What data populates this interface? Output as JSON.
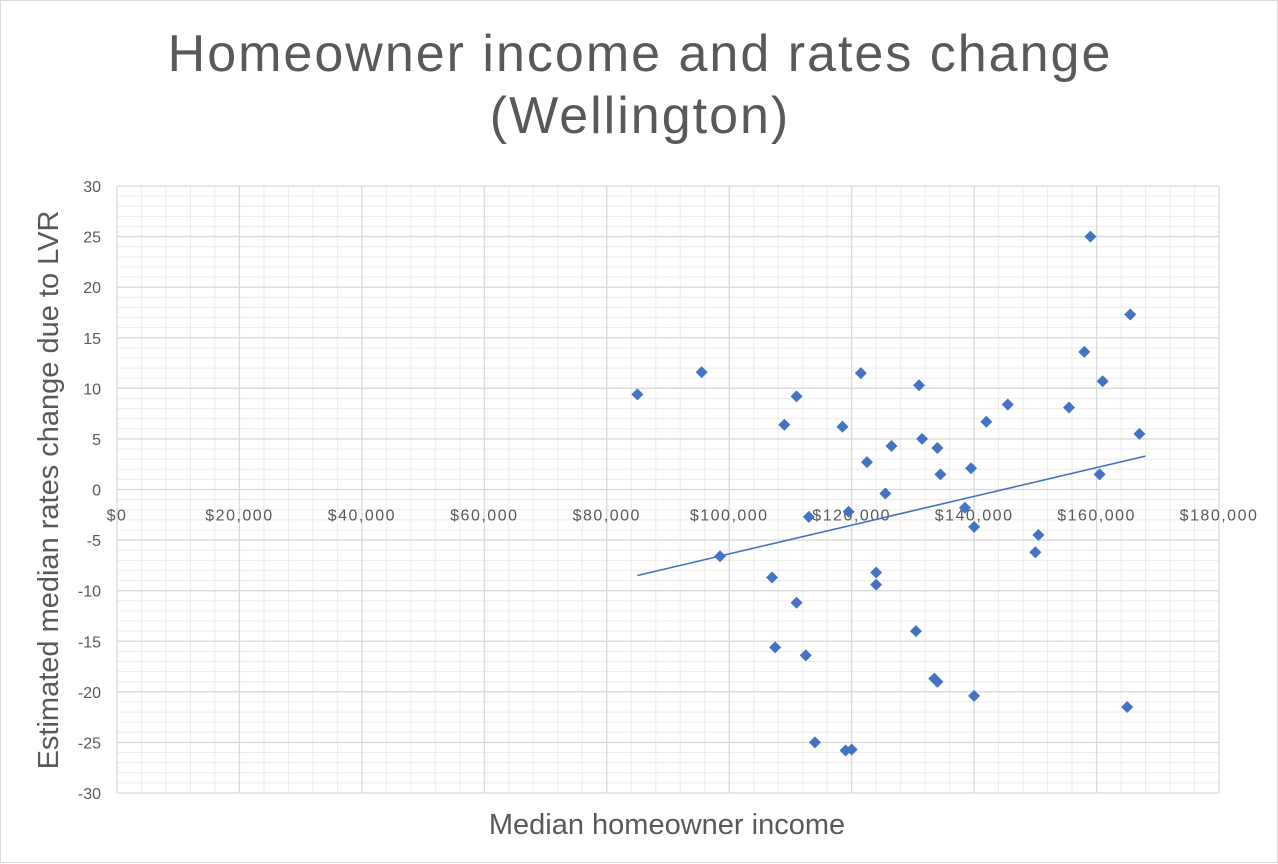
{
  "chart_data": {
    "type": "scatter",
    "title": [
      "Homeowner income and rates change",
      "(Wellington)"
    ],
    "xlabel": "Median homeowner income",
    "ylabel": "Estimated median rates change due to LVR",
    "xlim": [
      0,
      180000
    ],
    "ylim": [
      -30,
      30
    ],
    "x_ticks": [
      0,
      20000,
      40000,
      60000,
      80000,
      100000,
      120000,
      140000,
      160000,
      180000
    ],
    "x_tick_labels": [
      "$0",
      "$20,000",
      "$40,000",
      "$60,000",
      "$80,000",
      "$100,000",
      "$120,000",
      "$140,000",
      "$160,000",
      "$180,000"
    ],
    "y_ticks": [
      30,
      25,
      20,
      15,
      10,
      5,
      0,
      -5,
      -10,
      -15,
      -20,
      -25,
      -30
    ],
    "y_tick_labels": [
      "30",
      "25",
      "20",
      "15",
      "10",
      "5",
      "0",
      "-5",
      "-10",
      "-15",
      "-20",
      "-25",
      "-30"
    ],
    "grid": "on (major and minor)",
    "marker": "diamond",
    "marker_color": "#4472c4",
    "trendline": {
      "type": "linear",
      "x": [
        85000,
        168000
      ],
      "y": [
        -8.5,
        3.3
      ],
      "color": "#4472c4"
    },
    "points": [
      {
        "x": 85000,
        "y": 9.4
      },
      {
        "x": 95500,
        "y": 11.6
      },
      {
        "x": 98500,
        "y": -6.6
      },
      {
        "x": 107000,
        "y": -8.7
      },
      {
        "x": 107500,
        "y": -15.6
      },
      {
        "x": 109000,
        "y": 6.4
      },
      {
        "x": 111000,
        "y": 9.2
      },
      {
        "x": 111000,
        "y": -11.2
      },
      {
        "x": 112500,
        "y": -16.4
      },
      {
        "x": 113000,
        "y": -2.7
      },
      {
        "x": 114000,
        "y": -25.0
      },
      {
        "x": 118500,
        "y": 6.2
      },
      {
        "x": 119000,
        "y": -25.8
      },
      {
        "x": 119500,
        "y": -2.2
      },
      {
        "x": 120000,
        "y": -25.7
      },
      {
        "x": 121500,
        "y": 11.5
      },
      {
        "x": 122500,
        "y": 2.7
      },
      {
        "x": 124000,
        "y": -8.2
      },
      {
        "x": 124000,
        "y": -9.4
      },
      {
        "x": 125500,
        "y": -0.4
      },
      {
        "x": 126500,
        "y": 4.3
      },
      {
        "x": 130500,
        "y": -14.0
      },
      {
        "x": 131000,
        "y": 10.3
      },
      {
        "x": 131500,
        "y": 5.0
      },
      {
        "x": 133500,
        "y": -18.7
      },
      {
        "x": 134000,
        "y": 4.1
      },
      {
        "x": 134000,
        "y": -19.0
      },
      {
        "x": 134500,
        "y": 1.5
      },
      {
        "x": 138500,
        "y": -1.8
      },
      {
        "x": 139500,
        "y": 2.1
      },
      {
        "x": 140000,
        "y": -3.7
      },
      {
        "x": 140000,
        "y": -20.4
      },
      {
        "x": 142000,
        "y": 6.7
      },
      {
        "x": 145500,
        "y": 8.4
      },
      {
        "x": 150000,
        "y": -6.2
      },
      {
        "x": 150500,
        "y": -4.5
      },
      {
        "x": 155500,
        "y": 8.1
      },
      {
        "x": 158000,
        "y": 13.6
      },
      {
        "x": 159000,
        "y": 25.0
      },
      {
        "x": 160500,
        "y": 1.5
      },
      {
        "x": 161000,
        "y": 10.7
      },
      {
        "x": 165000,
        "y": -21.5
      },
      {
        "x": 165500,
        "y": 17.3
      },
      {
        "x": 167000,
        "y": 5.5
      }
    ]
  }
}
